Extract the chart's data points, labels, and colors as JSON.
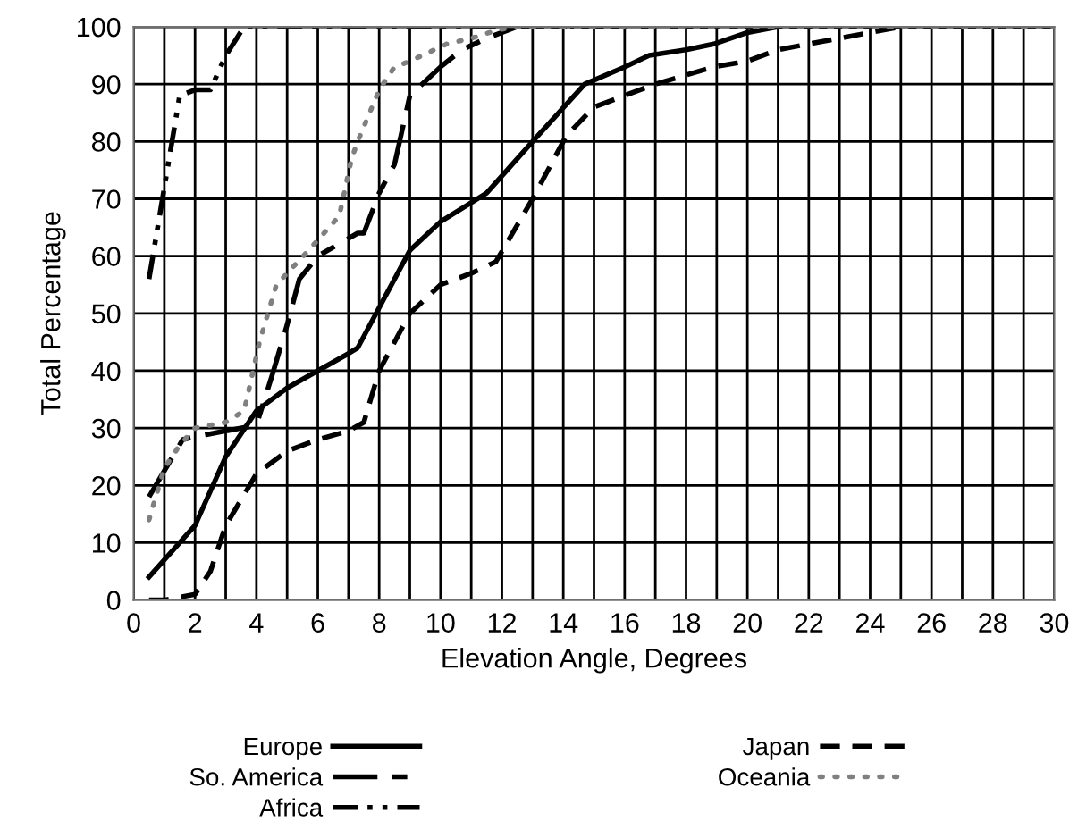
{
  "chart_data": {
    "type": "line",
    "xlabel": "Elevation Angle, Degrees",
    "ylabel": "Total Percentage",
    "xlim": [
      0,
      30
    ],
    "ylim": [
      0,
      100
    ],
    "xticks": [
      0,
      {
        "value": 1,
        "label": null
      },
      2,
      {
        "value": 3,
        "label": null
      },
      4,
      {
        "value": 5,
        "label": null
      },
      6,
      {
        "value": 7,
        "label": null
      },
      8,
      {
        "value": 9,
        "label": null
      },
      10,
      {
        "value": 11,
        "label": null
      },
      12,
      {
        "value": 13,
        "label": null
      },
      14,
      {
        "value": 15,
        "label": null
      },
      16,
      {
        "value": 17,
        "label": null
      },
      18,
      {
        "value": 19,
        "label": null
      },
      20,
      {
        "value": 21,
        "label": null
      },
      22,
      {
        "value": 23,
        "label": null
      },
      24,
      {
        "value": 25,
        "label": null
      },
      26,
      {
        "value": 27,
        "label": null
      },
      28,
      {
        "value": 29,
        "label": null
      },
      30
    ],
    "yticks": [
      0,
      10,
      20,
      30,
      40,
      50,
      60,
      70,
      80,
      90,
      100
    ],
    "grid": true,
    "legend": "bottom",
    "marker": "none",
    "series": [
      {
        "name": "Europe",
        "color": "#000000",
        "line_style": "solid",
        "x": [
          0.5,
          1,
          2,
          3,
          4,
          5,
          6,
          7,
          7.3,
          8.5,
          9,
          10,
          11.5,
          13,
          14.7,
          16,
          16.8,
          18,
          18.9,
          20,
          21,
          30
        ],
        "values": [
          4,
          7,
          13,
          25,
          33,
          37,
          40,
          43,
          44,
          56,
          61,
          66,
          71,
          80,
          90,
          93,
          95,
          96,
          97,
          99,
          100,
          100
        ]
      },
      {
        "name": "So. America",
        "color": "#000000",
        "line_style": "longdash",
        "x": [
          0.5,
          1.6,
          2,
          3,
          4,
          4.5,
          5,
          5.4,
          6,
          7.3,
          7.5,
          8,
          8.5,
          9,
          10,
          10.7,
          11.5,
          12.5,
          30
        ],
        "values": [
          18,
          28,
          28.5,
          29.5,
          30.5,
          39,
          48,
          56,
          60,
          64,
          64,
          71,
          76,
          88,
          93,
          96,
          98,
          100,
          100
        ]
      },
      {
        "name": "Africa",
        "color": "#000000",
        "line_style": "dashdot",
        "x": [
          0.5,
          1,
          1.5,
          2,
          2.5,
          3,
          3.6,
          30
        ],
        "values": [
          56,
          72,
          88,
          89,
          89,
          95,
          100,
          100
        ]
      },
      {
        "name": "Japan",
        "color": "#000000",
        "line_style": "dashed",
        "x": [
          0.5,
          1,
          2,
          2.5,
          3,
          4,
          5,
          6,
          7,
          7.5,
          8,
          9,
          10,
          11,
          11.8,
          13,
          14.1,
          15,
          16,
          17,
          18.9,
          20,
          21,
          22,
          23,
          24,
          25,
          30
        ],
        "values": [
          0,
          0,
          1,
          5,
          13,
          22,
          26,
          28,
          29.5,
          31,
          40,
          50,
          55,
          57,
          59,
          70,
          81,
          86,
          88,
          90,
          93,
          94,
          96,
          97,
          98,
          99,
          100,
          100
        ]
      },
      {
        "name": "Oceania",
        "color": "#808080",
        "line_style": "dotted",
        "x": [
          0.5,
          1,
          1.5,
          2,
          3,
          3.6,
          4.1,
          4.65,
          5,
          5.7,
          6.7,
          7.1,
          7.3,
          8,
          8.5,
          9,
          10.2,
          11,
          11.9,
          12.5,
          30
        ],
        "values": [
          14,
          23,
          27,
          30,
          31,
          33,
          45,
          55,
          57,
          61,
          67,
          77,
          80,
          89,
          93,
          94,
          97,
          98,
          99.5,
          100,
          100
        ]
      }
    ]
  }
}
